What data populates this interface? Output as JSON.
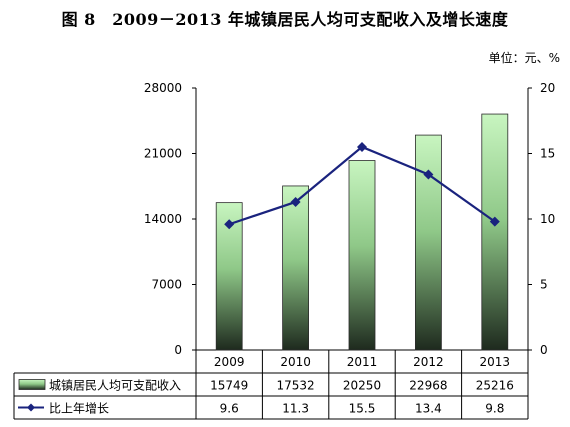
{
  "chart_data": {
    "title": "图 8　2009－2013 年城镇居民人均可支配收入及增长速度",
    "unit_label": "单位：元、%",
    "categories": [
      "2009",
      "2010",
      "2011",
      "2012",
      "2013"
    ],
    "left_axis": {
      "min": 0,
      "max": 28000,
      "ticks": [
        "0",
        "7000",
        "14000",
        "21000",
        "28000"
      ]
    },
    "right_axis": {
      "min": 0,
      "max": 20,
      "ticks": [
        "0",
        "5",
        "10",
        "15",
        "20"
      ]
    },
    "series": [
      {
        "name": "城镇居民人均可支配收入",
        "type": "bar",
        "axis": "left",
        "values": [
          15749,
          17532,
          20250,
          22968,
          25216
        ],
        "labels": [
          "15749",
          "17532",
          "20250",
          "22968",
          "25216"
        ],
        "color_top": "#c8f5c0",
        "color_bottom": "#1e2a1e"
      },
      {
        "name": "比上年增长",
        "type": "line",
        "axis": "right",
        "values": [
          9.6,
          11.3,
          15.5,
          13.4,
          9.8
        ],
        "labels": [
          "9.6",
          "11.3",
          "15.5",
          "13.4",
          "9.8"
        ],
        "color": "#1a237e"
      }
    ],
    "grid": false,
    "legend": "data-table-below"
  }
}
